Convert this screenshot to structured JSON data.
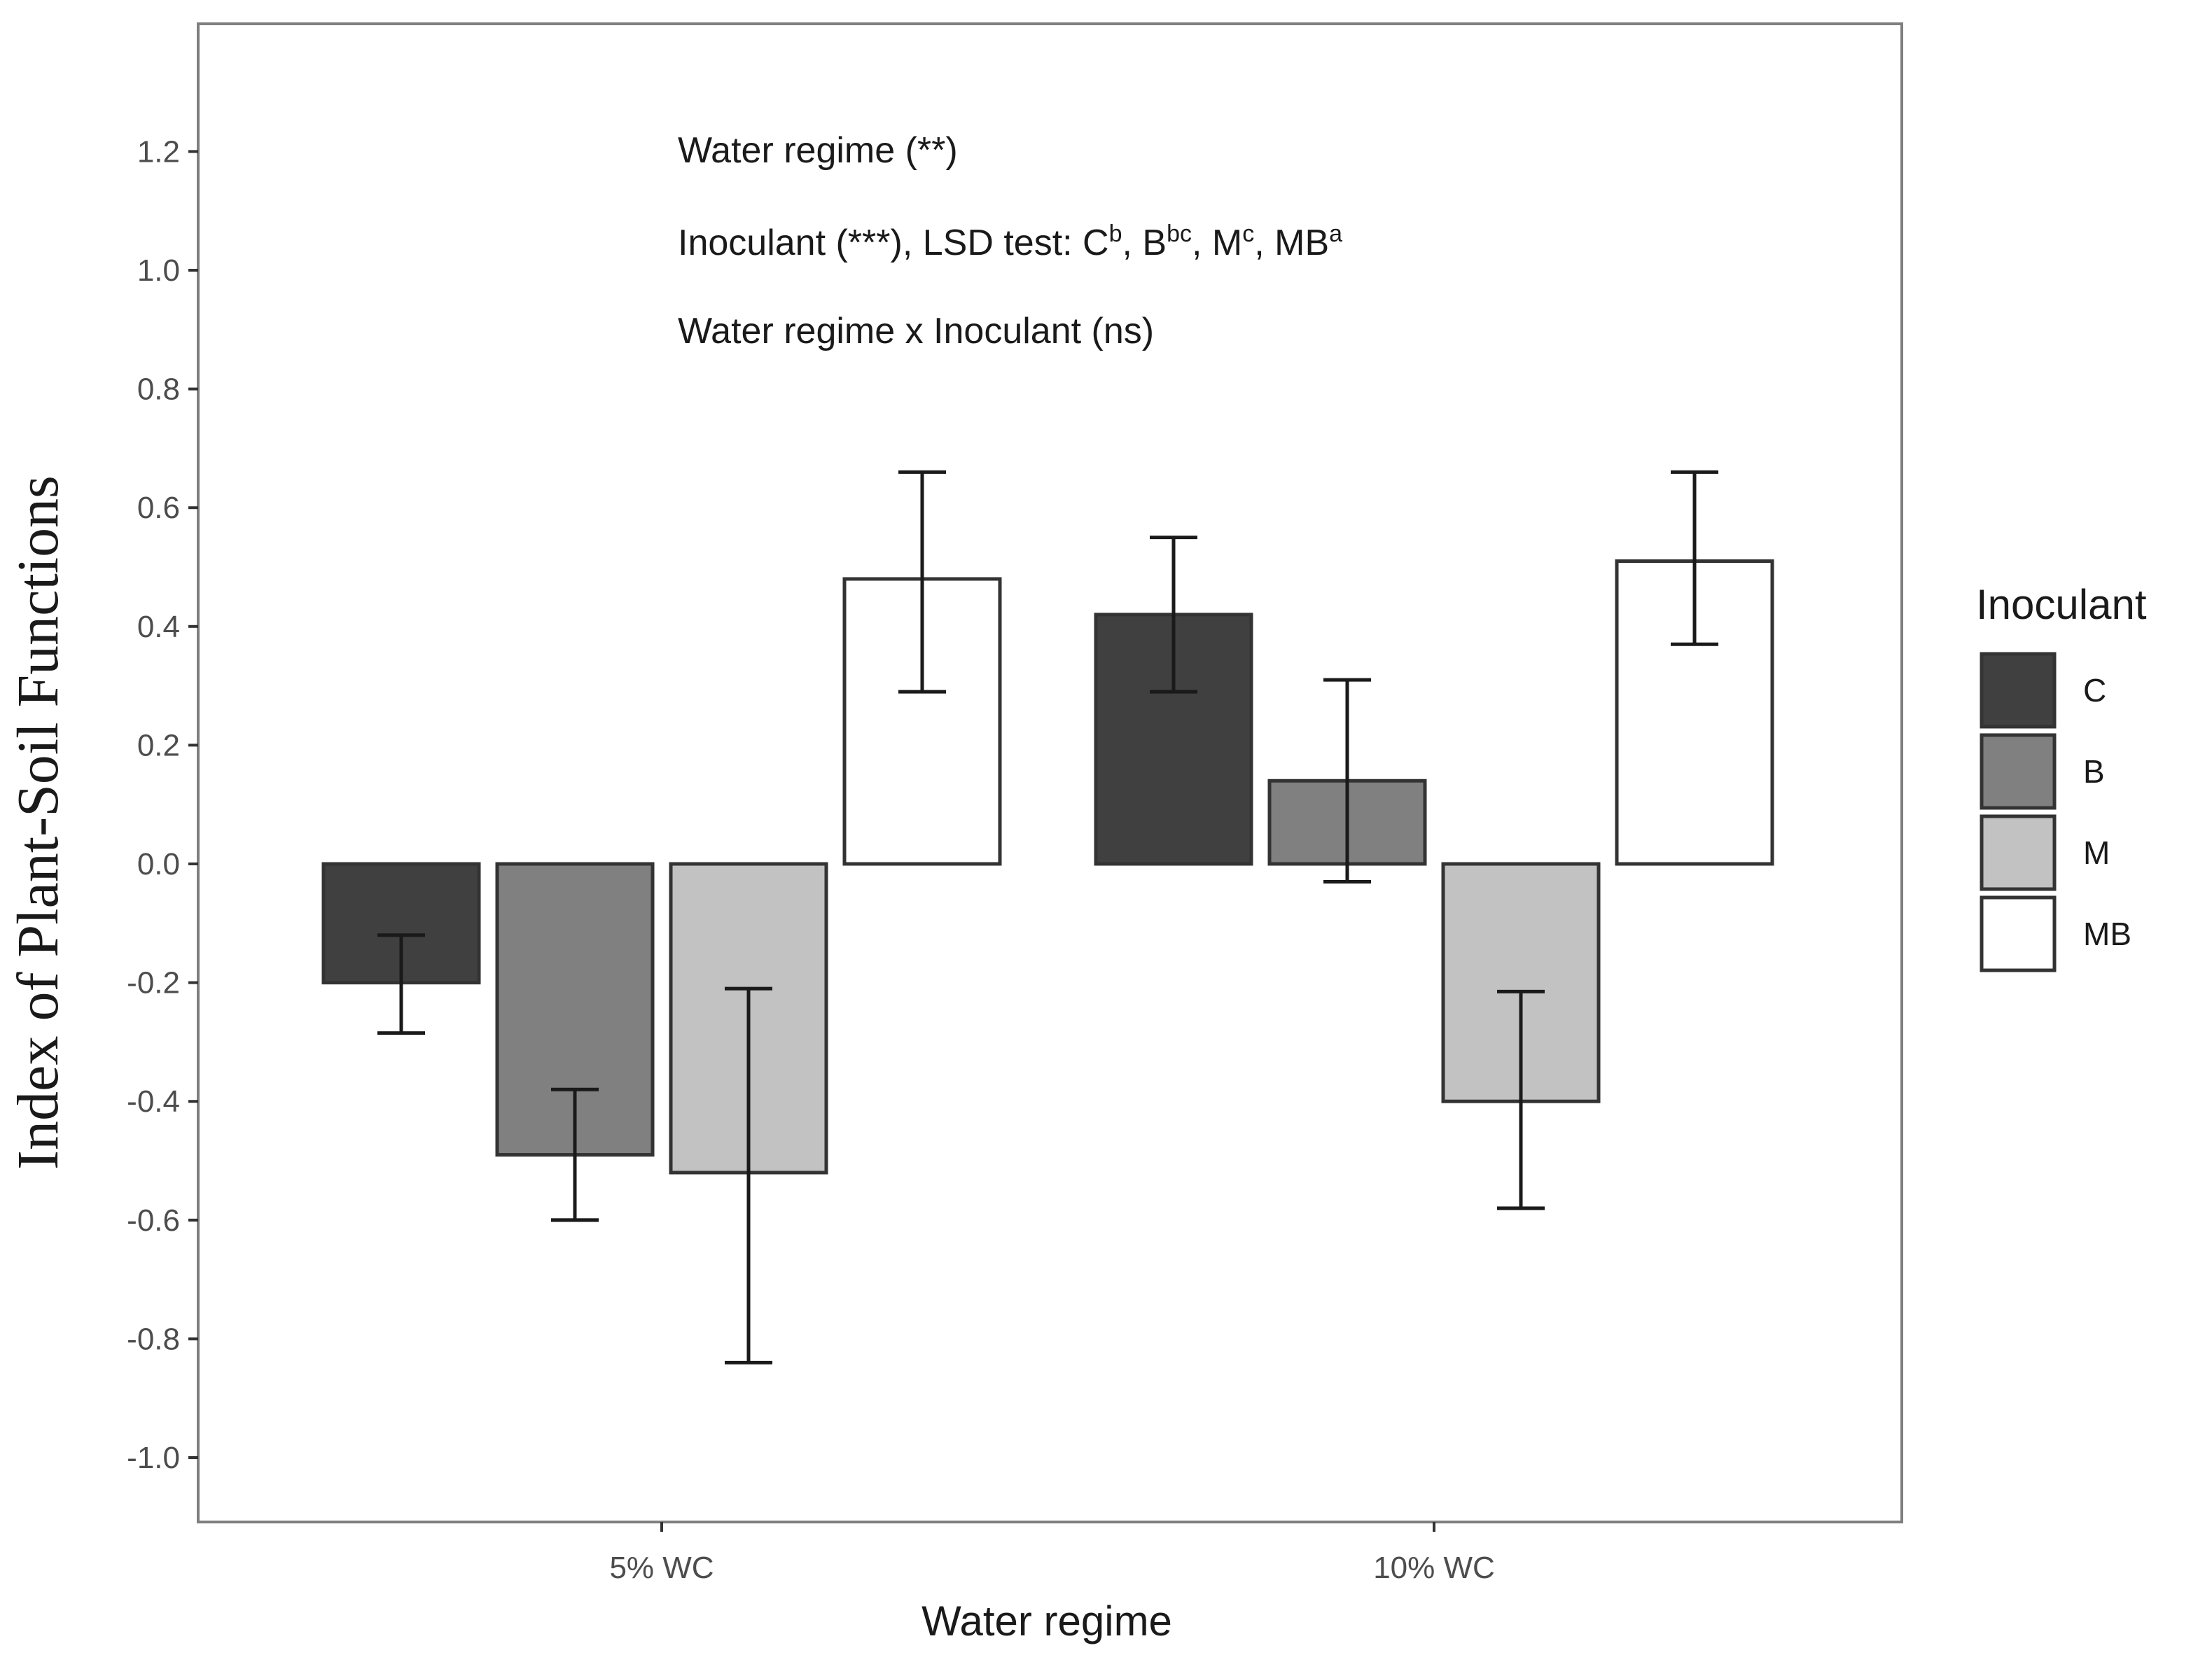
{
  "chart_data": {
    "type": "bar",
    "xlabel": "Water regime",
    "ylabel": "Index of Plant-Soil Functions",
    "ylim": [
      -1.1,
      1.4
    ],
    "yticks": [
      -1.0,
      -0.8,
      -0.6,
      -0.4,
      -0.2,
      0.0,
      0.2,
      0.4,
      0.6,
      0.8,
      1.0,
      1.2
    ],
    "ytick_labels": [
      "-1.0",
      "-0.8",
      "-0.6",
      "-0.4",
      "-0.2",
      "0.0",
      "0.2",
      "0.4",
      "0.6",
      "0.8",
      "1.0",
      "1.2"
    ],
    "categories": [
      "5% WC",
      "10% WC"
    ],
    "series": [
      {
        "name": "C",
        "color": "#404040",
        "values": [
          -0.2,
          0.42
        ],
        "err_low": [
          -0.285,
          0.29
        ],
        "err_high": [
          -0.12,
          0.55
        ]
      },
      {
        "name": "B",
        "color": "#808080",
        "values": [
          -0.49,
          0.14
        ],
        "err_low": [
          -0.6,
          -0.03
        ],
        "err_high": [
          -0.38,
          0.31
        ]
      },
      {
        "name": "M",
        "color": "#c2c2c2",
        "values": [
          -0.52,
          -0.4
        ],
        "err_low": [
          -0.84,
          -0.58
        ],
        "err_high": [
          -0.21,
          -0.215
        ]
      },
      {
        "name": "MB",
        "color": "#ffffff",
        "values": [
          0.48,
          0.51
        ],
        "err_low": [
          0.29,
          0.37
        ],
        "err_high": [
          0.66,
          0.66
        ]
      }
    ],
    "legend": {
      "title": "Inoculant",
      "position": "right"
    },
    "annotations": [
      {
        "text": "Water regime (**)"
      },
      {
        "parts": [
          {
            "t": "Inoculant (***), LSD test: C"
          },
          {
            "sup": "b"
          },
          {
            "t": ", B"
          },
          {
            "sup": "bc"
          },
          {
            "t": ", M"
          },
          {
            "sup": "c"
          },
          {
            "t": ", MB"
          },
          {
            "sup": "a"
          }
        ]
      },
      {
        "text": "Water regime x Inoculant (ns)"
      }
    ]
  }
}
